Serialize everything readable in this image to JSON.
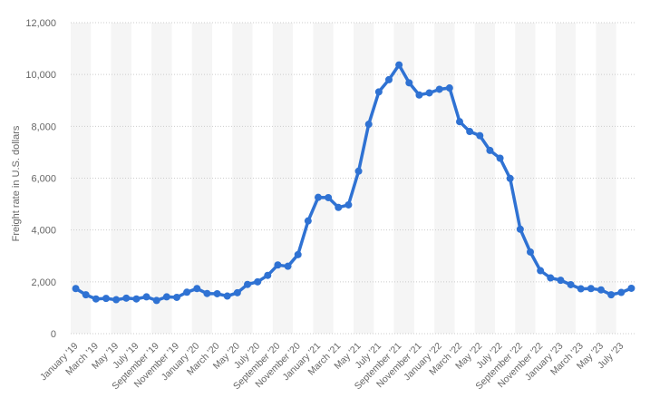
{
  "chart_data": {
    "type": "line",
    "ylabel": "Freight rate in U.S. dollars",
    "xlabel": "",
    "ylim": [
      0,
      12000
    ],
    "yticks": [
      0,
      2000,
      4000,
      6000,
      8000,
      10000,
      12000
    ],
    "ytick_labels": [
      "0",
      "2,000",
      "4,000",
      "6,000",
      "8,000",
      "10,000",
      "12,000"
    ],
    "grid": "horizontal dotted",
    "line_color": "#2F72D3",
    "x": [
      "Jan 2019",
      "Feb 2019",
      "Mar 2019",
      "Apr 2019",
      "May 2019",
      "Jun 2019",
      "Jul 2019",
      "Aug 2019",
      "Sep 2019",
      "Oct 2019",
      "Nov 2019",
      "Dec 2019",
      "Jan 2020",
      "Feb 2020",
      "Mar 2020",
      "Apr 2020",
      "May 2020",
      "Jun 2020",
      "Jul 2020",
      "Aug 2020",
      "Sep 2020",
      "Oct 2020",
      "Nov 2020",
      "Dec 2020",
      "Jan 2021",
      "Feb 2021",
      "Mar 2021",
      "Apr 2021",
      "May 2021",
      "Jun 2021",
      "Jul 2021",
      "Aug 2021",
      "Sep 2021",
      "Oct 2021",
      "Nov 2021",
      "Dec 2021",
      "Jan 2022",
      "Feb 2022",
      "Mar 2022",
      "Apr 2022",
      "May 2022",
      "Jun 2022",
      "Jul 2022",
      "Aug 2022",
      "Sep 2022",
      "Oct 2022",
      "Nov 2022",
      "Dec 2022",
      "Jan 2023",
      "Feb 2023",
      "Mar 2023",
      "Apr 2023",
      "May 2023",
      "Jun 2023",
      "Jul 2023",
      "Aug 2023"
    ],
    "values": [
      1740,
      1500,
      1340,
      1360,
      1310,
      1370,
      1340,
      1420,
      1280,
      1420,
      1400,
      1600,
      1740,
      1550,
      1540,
      1450,
      1580,
      1900,
      2000,
      2250,
      2650,
      2600,
      3050,
      4350,
      5260,
      5250,
      4870,
      4970,
      6270,
      8080,
      9330,
      9800,
      10370,
      9680,
      9210,
      9290,
      9430,
      9480,
      8180,
      7800,
      7640,
      7070,
      6770,
      5990,
      4030,
      3150,
      2430,
      2150,
      2060,
      1890,
      1730,
      1740,
      1690,
      1500,
      1590,
      1750
    ],
    "x_tick_labels": [
      "January '19",
      "March '19",
      "May '19",
      "July '19",
      "September '19",
      "November '19",
      "January '20",
      "March '20",
      "May '20",
      "July '20",
      "September '20",
      "November '20",
      "January '21",
      "March '21",
      "May '21",
      "July '21",
      "September '21",
      "November '21",
      "January '22",
      "March '22",
      "May '22",
      "July '22",
      "September '22",
      "November '22",
      "January '23",
      "March '23",
      "May '23",
      "July '23"
    ]
  }
}
